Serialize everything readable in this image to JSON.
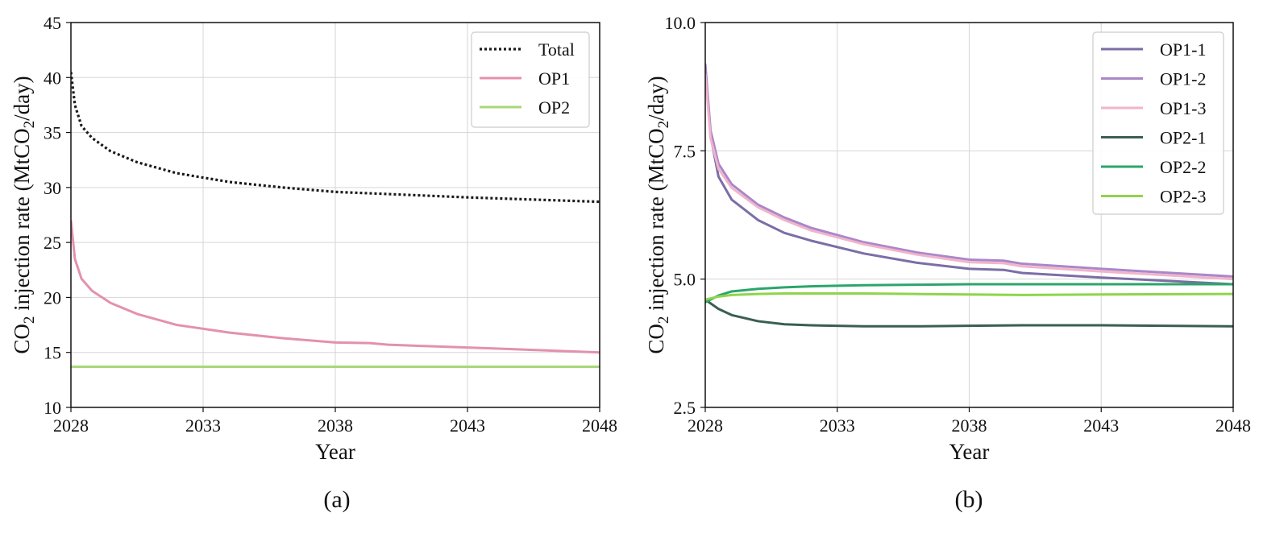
{
  "chart_data": [
    {
      "type": "line",
      "caption": "(a)",
      "xlabel": "Year",
      "ylabel": {
        "prefix": "CO",
        "sub": "2",
        "middle": " injection rate (MtCO",
        "sub2": "2",
        "suffix": "/day)"
      },
      "xlim": [
        2028,
        2048
      ],
      "ylim": [
        10,
        45
      ],
      "xticks": [
        "2028",
        "2033",
        "2038",
        "2043",
        "2048"
      ],
      "yticks": [
        "10",
        "15",
        "20",
        "25",
        "30",
        "35",
        "40",
        "45"
      ],
      "legend_position": "top-right",
      "grid": true,
      "series": [
        {
          "name": "Total",
          "color": "#1a1a1a",
          "style": "dotted",
          "x": [
            2028,
            2028.15,
            2028.4,
            2028.8,
            2029.5,
            2030.5,
            2032,
            2034,
            2036,
            2038,
            2040,
            2043,
            2048
          ],
          "y": [
            40.5,
            37.5,
            35.6,
            34.5,
            33.3,
            32.3,
            31.3,
            30.5,
            30.0,
            29.6,
            29.4,
            29.1,
            28.7
          ]
        },
        {
          "name": "OP1",
          "color": "#e391ad",
          "style": "solid",
          "x": [
            2028,
            2028.15,
            2028.4,
            2028.8,
            2029.5,
            2030.5,
            2032,
            2034,
            2036,
            2038,
            2039.3,
            2040,
            2043,
            2048
          ],
          "y": [
            27.0,
            23.5,
            21.7,
            20.6,
            19.5,
            18.5,
            17.5,
            16.8,
            16.3,
            15.9,
            15.85,
            15.7,
            15.45,
            15.0
          ]
        },
        {
          "name": "OP2",
          "color": "#a8d878",
          "style": "solid",
          "x": [
            2028,
            2048
          ],
          "y": [
            13.7,
            13.7
          ]
        }
      ]
    },
    {
      "type": "line",
      "caption": "(b)",
      "xlabel": "Year",
      "ylabel": {
        "prefix": "CO",
        "sub": "2",
        "middle": " injection rate (MtCO",
        "sub2": "2",
        "suffix": "/day)"
      },
      "xlim": [
        2028,
        2048
      ],
      "ylim": [
        2.5,
        10.0
      ],
      "xticks": [
        "2028",
        "2033",
        "2038",
        "2043",
        "2048"
      ],
      "yticks": [
        "2.5",
        "5.0",
        "7.5",
        "10.0"
      ],
      "legend_position": "top-right",
      "grid": true,
      "series": [
        {
          "name": "OP1-1",
          "color": "#7b6ea6",
          "style": "solid",
          "x": [
            2028,
            2028.2,
            2028.5,
            2029,
            2030,
            2031,
            2032,
            2034,
            2036,
            2038,
            2039.3,
            2040,
            2043,
            2048
          ],
          "y": [
            9.1,
            7.8,
            7.0,
            6.55,
            6.15,
            5.9,
            5.75,
            5.5,
            5.32,
            5.2,
            5.18,
            5.12,
            5.03,
            4.9
          ]
        },
        {
          "name": "OP1-2",
          "color": "#a987c9",
          "style": "solid",
          "x": [
            2028,
            2028.2,
            2028.5,
            2029,
            2030,
            2031,
            2032,
            2034,
            2036,
            2038,
            2039.3,
            2040,
            2043,
            2048
          ],
          "y": [
            9.2,
            7.9,
            7.25,
            6.85,
            6.45,
            6.2,
            6.0,
            5.72,
            5.52,
            5.38,
            5.36,
            5.3,
            5.2,
            5.05
          ]
        },
        {
          "name": "OP1-3",
          "color": "#f2b3cb",
          "style": "solid",
          "x": [
            2028,
            2028.2,
            2028.5,
            2029,
            2030,
            2031,
            2032,
            2034,
            2036,
            2038,
            2039.3,
            2040,
            2043,
            2048
          ],
          "y": [
            9.0,
            7.75,
            7.15,
            6.78,
            6.4,
            6.15,
            5.95,
            5.68,
            5.48,
            5.33,
            5.31,
            5.25,
            5.15,
            5.0
          ]
        },
        {
          "name": "OP2-1",
          "color": "#3a5e52",
          "style": "solid",
          "x": [
            2028,
            2028.5,
            2029,
            2030,
            2031,
            2032,
            2034,
            2036,
            2038,
            2040,
            2043,
            2048
          ],
          "y": [
            4.6,
            4.42,
            4.3,
            4.18,
            4.12,
            4.1,
            4.08,
            4.08,
            4.09,
            4.1,
            4.1,
            4.08
          ]
        },
        {
          "name": "OP2-2",
          "color": "#2ca56b",
          "style": "solid",
          "x": [
            2028,
            2028.5,
            2029,
            2030,
            2031,
            2032,
            2034,
            2036,
            2038,
            2040,
            2043,
            2048
          ],
          "y": [
            4.55,
            4.68,
            4.76,
            4.81,
            4.84,
            4.86,
            4.88,
            4.89,
            4.9,
            4.9,
            4.9,
            4.9
          ]
        },
        {
          "name": "OP2-3",
          "color": "#8fd44b",
          "style": "solid",
          "x": [
            2028,
            2028.5,
            2029,
            2030,
            2031,
            2032,
            2034,
            2036,
            2038,
            2040,
            2043,
            2048
          ],
          "y": [
            4.6,
            4.66,
            4.69,
            4.71,
            4.72,
            4.72,
            4.72,
            4.71,
            4.7,
            4.69,
            4.7,
            4.71
          ]
        }
      ]
    }
  ]
}
